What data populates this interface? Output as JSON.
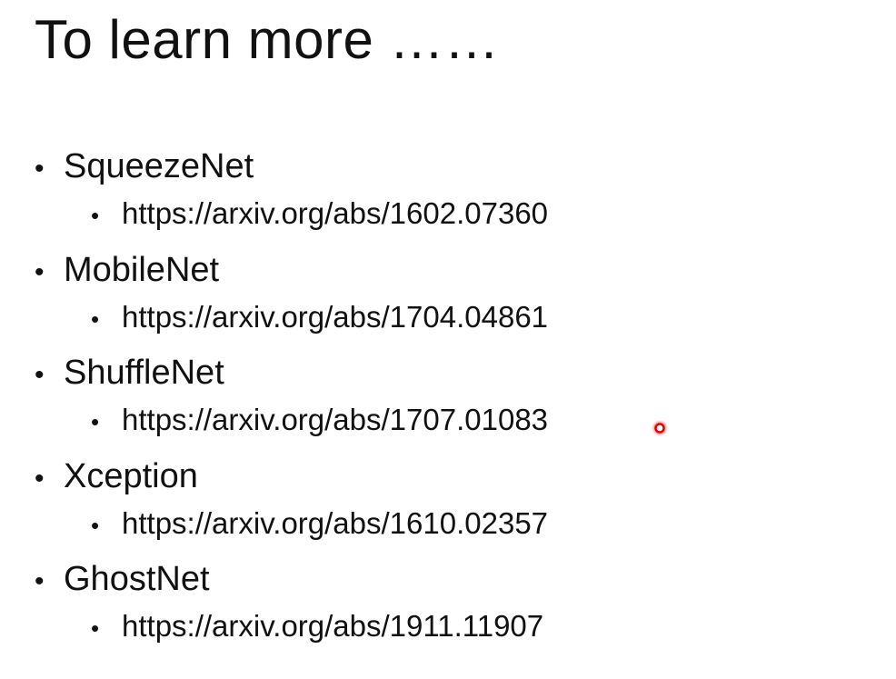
{
  "slide": {
    "title": "To learn more ……",
    "items": [
      {
        "name": "SqueezeNet",
        "link": "https://arxiv.org/abs/1602.07360"
      },
      {
        "name": "MobileNet",
        "link": "https://arxiv.org/abs/1704.04861"
      },
      {
        "name": "ShuffleNet",
        "link": "https://arxiv.org/abs/1707.01083"
      },
      {
        "name": "Xception",
        "link": "https://arxiv.org/abs/1610.02357"
      },
      {
        "name": "GhostNet",
        "link": "https://arxiv.org/abs/1911.11907"
      }
    ],
    "bullet": "•"
  },
  "colors": {
    "text": "#111111",
    "pointer": "#e60000"
  }
}
